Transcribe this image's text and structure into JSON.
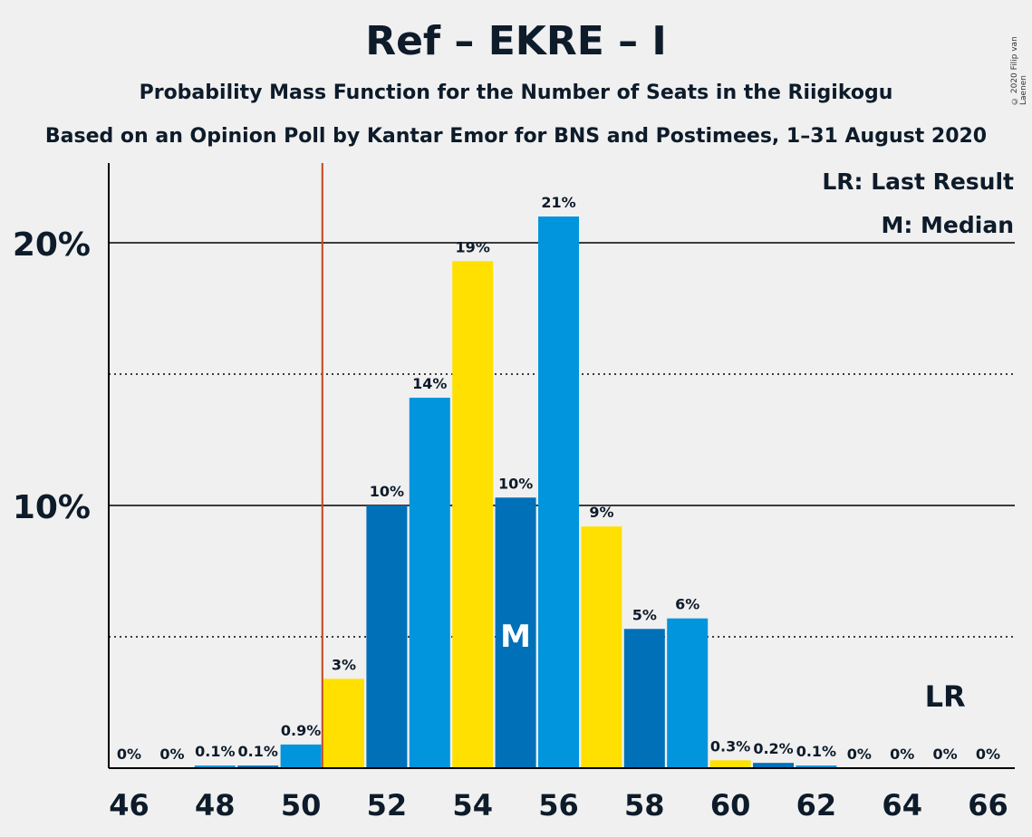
{
  "title": "Ref – EKRE – I",
  "subtitle1": "Probability Mass Function for the Number of Seats in the Riigikogu",
  "subtitle2": "Based on an Opinion Poll by Kantar Emor for BNS and Postimees, 1–31 August 2020",
  "copyright": "© 2020 Filip van Laenen",
  "legend": {
    "last_result": "LR: Last Result",
    "median": "M: Median"
  },
  "colors": {
    "dark_blue": "#0070b8",
    "light_blue": "#0095dc",
    "yellow": "#ffe000",
    "lr_line": "#c2451a"
  },
  "chart_data": {
    "type": "bar",
    "x": [
      46,
      47,
      48,
      49,
      50,
      51,
      52,
      53,
      54,
      55,
      56,
      57,
      58,
      59,
      60,
      61,
      62,
      63,
      64,
      65,
      66
    ],
    "values": [
      0,
      0,
      0.1,
      0.1,
      0.9,
      3.4,
      10.0,
      14.1,
      19.3,
      10.3,
      21.0,
      9.2,
      5.3,
      5.7,
      0.3,
      0.2,
      0.1,
      0,
      0,
      0,
      0
    ],
    "data_labels": [
      "0%",
      "0%",
      "0.1%",
      "0.1%",
      "0.9%",
      "3%",
      "10%",
      "14%",
      "19%",
      "10%",
      "21%",
      "9%",
      "5%",
      "6%",
      "0.3%",
      "0.2%",
      "0.1%",
      "0%",
      "0%",
      "0%",
      "0%"
    ],
    "colors": [
      "yellow",
      "dark_blue",
      "light_blue",
      "dark_blue",
      "light_blue",
      "yellow",
      "dark_blue",
      "light_blue",
      "yellow",
      "dark_blue",
      "light_blue",
      "yellow",
      "dark_blue",
      "light_blue",
      "yellow",
      "dark_blue",
      "light_blue",
      "yellow",
      "dark_blue",
      "light_blue",
      "yellow"
    ],
    "x_tick_labels": [
      "46",
      "48",
      "50",
      "52",
      "54",
      "56",
      "58",
      "60",
      "62",
      "64",
      "66"
    ],
    "y_tick_labels": [
      "10%",
      "20%"
    ],
    "ylim": [
      0,
      23
    ],
    "last_result_seat": 50.5,
    "median_seat": 55,
    "median_label": "M",
    "lr_marker_seat": 65,
    "lr_label": "LR",
    "grid": "solid lines at 10% and 20%, dotted at 5%, 15%"
  }
}
